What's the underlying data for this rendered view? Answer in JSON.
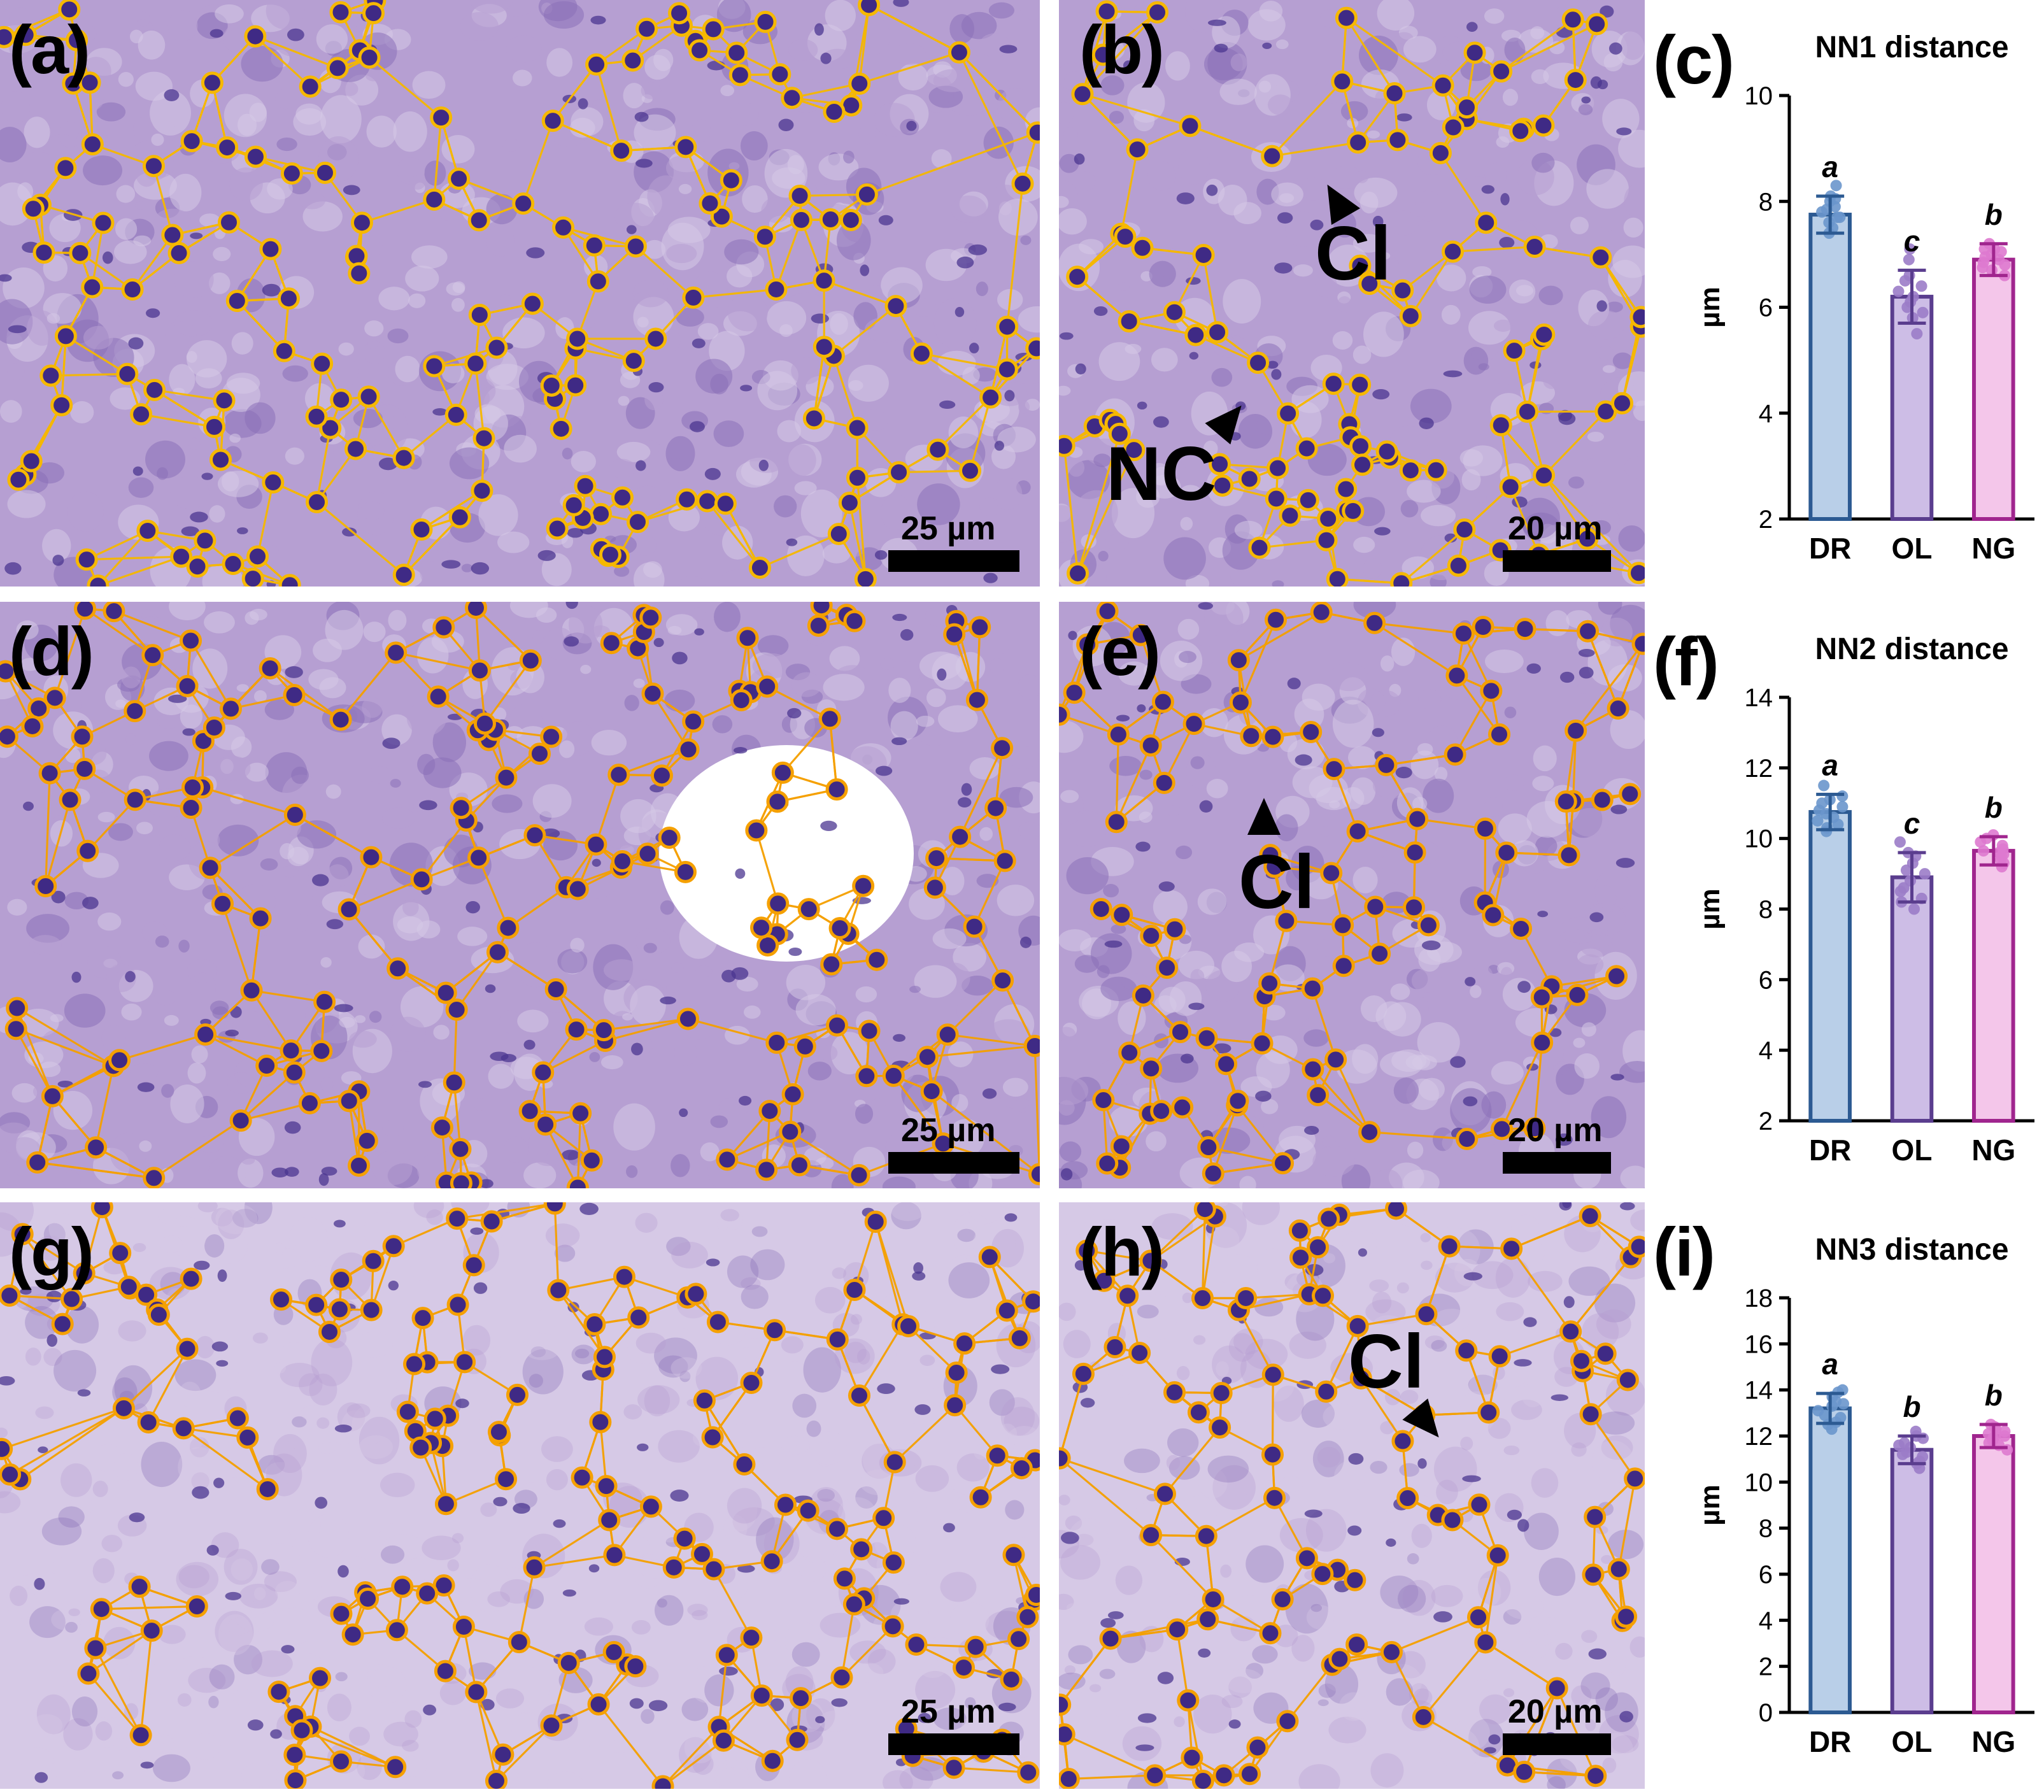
{
  "panels": {
    "a": {
      "label": "(a)",
      "scale": "25 µm"
    },
    "b": {
      "label": "(b)",
      "scale": "20 µm",
      "annotations": [
        "Cl",
        "NC"
      ]
    },
    "c": {
      "label": "(c)"
    },
    "d": {
      "label": "(d)",
      "scale": "25 µm"
    },
    "e": {
      "label": "(e)",
      "scale": "20 µm",
      "annotations": [
        "Cl"
      ]
    },
    "f": {
      "label": "(f)"
    },
    "g": {
      "label": "(g)",
      "scale": "25 µm"
    },
    "h": {
      "label": "(h)",
      "scale": "20 µm",
      "annotations": [
        "Cl"
      ]
    },
    "i": {
      "label": "(i)"
    }
  },
  "colors": {
    "network_yellow": "#f6b800",
    "network_orange": "#f5a000",
    "tissue_dark": "#8a6fb8",
    "tissue_mid": "#b69fd2",
    "tissue_light": "#d6c9e6",
    "DR_fill": "#b9cfe8",
    "DR_edge": "#2c5a92",
    "DR_dot": "#6a96cc",
    "OL_fill": "#cdbde6",
    "OL_edge": "#5a3d8e",
    "OL_dot": "#9b7cc8",
    "NG_fill": "#f4c6ea",
    "NG_edge": "#a0258e",
    "NG_dot": "#de79cf"
  },
  "chart_data": [
    {
      "type": "bar",
      "panel": "c",
      "title": "NN1 distance",
      "ylabel": "µm",
      "categories": [
        "DR",
        "OL",
        "NG"
      ],
      "values": [
        7.75,
        6.2,
        6.9
      ],
      "errors": [
        0.35,
        0.5,
        0.3
      ],
      "letters": [
        "a",
        "c",
        "b"
      ],
      "ylim": [
        2,
        10
      ],
      "yticks": [
        2,
        4,
        6,
        8,
        10
      ],
      "points": [
        [
          7.4,
          7.6,
          7.7,
          7.8,
          7.9,
          8.0,
          8.1,
          8.3,
          7.5,
          7.7,
          7.85,
          8.05
        ],
        [
          5.5,
          5.8,
          6.0,
          6.1,
          6.2,
          6.3,
          6.4,
          6.6,
          6.9,
          5.9,
          6.5,
          7.1
        ],
        [
          6.6,
          6.7,
          6.8,
          6.9,
          7.0,
          7.1,
          7.2,
          6.75,
          6.95,
          7.05,
          6.85,
          7.1
        ]
      ]
    },
    {
      "type": "bar",
      "panel": "f",
      "title": "NN2 distance",
      "ylabel": "µm",
      "categories": [
        "DR",
        "OL",
        "NG"
      ],
      "values": [
        10.75,
        8.9,
        9.65
      ],
      "errors": [
        0.5,
        0.7,
        0.4
      ],
      "letters": [
        "a",
        "c",
        "b"
      ],
      "ylim": [
        2,
        14
      ],
      "yticks": [
        2,
        4,
        6,
        8,
        10,
        12,
        14
      ],
      "points": [
        [
          10.2,
          10.4,
          10.6,
          10.7,
          10.8,
          10.9,
          11.0,
          11.2,
          11.5,
          10.5,
          11.1,
          10.3
        ],
        [
          8.0,
          8.3,
          8.6,
          8.8,
          9.0,
          9.1,
          9.3,
          9.5,
          9.9,
          8.5,
          9.6,
          8.2
        ],
        [
          9.2,
          9.4,
          9.5,
          9.6,
          9.7,
          9.8,
          9.9,
          10.1,
          9.3,
          9.65,
          10.0,
          9.55
        ]
      ]
    },
    {
      "type": "bar",
      "panel": "i",
      "title": "NN3 distance",
      "ylabel": "µm",
      "categories": [
        "DR",
        "OL",
        "NG"
      ],
      "values": [
        13.2,
        11.4,
        12.0
      ],
      "errors": [
        0.65,
        0.6,
        0.5
      ],
      "letters": [
        "a",
        "b",
        "b"
      ],
      "ylim": [
        0,
        18
      ],
      "yticks": [
        0,
        2,
        4,
        6,
        8,
        10,
        12,
        14,
        16,
        18
      ],
      "points": [
        [
          12.3,
          12.6,
          12.9,
          13.1,
          13.3,
          13.5,
          13.7,
          14.0,
          12.8,
          13.4,
          13.9,
          12.5
        ],
        [
          10.6,
          10.9,
          11.1,
          11.3,
          11.5,
          11.7,
          11.9,
          12.2,
          10.8,
          11.6,
          12.0,
          11.2
        ],
        [
          11.4,
          11.6,
          11.8,
          12.0,
          12.1,
          12.3,
          12.5,
          11.7,
          11.9,
          12.2,
          12.4,
          12.0
        ]
      ]
    }
  ]
}
